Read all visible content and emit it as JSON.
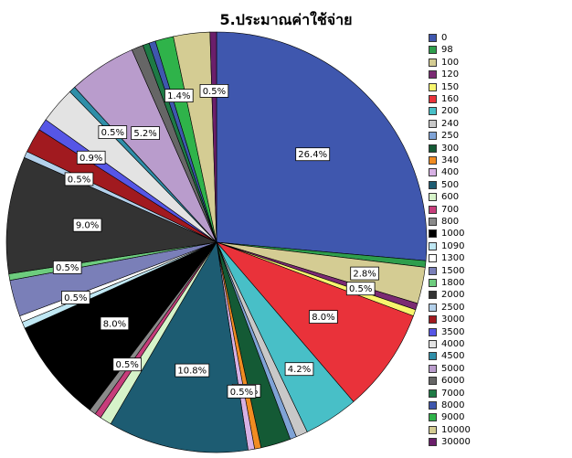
{
  "chart_data": {
    "type": "pie",
    "title": "5.ประมาณค่าใช้จ่าย",
    "legend_position": "right",
    "categories": [
      "0",
      "98",
      "100",
      "120",
      "150",
      "160",
      "200",
      "240",
      "250",
      "300",
      "340",
      "400",
      "500",
      "600",
      "700",
      "800",
      "1000",
      "1090",
      "1300",
      "1500",
      "1800",
      "2000",
      "2500",
      "3000",
      "3500",
      "4000",
      "4500",
      "5000",
      "6000",
      "7000",
      "8000",
      "9000",
      "10000",
      "30000"
    ],
    "values": [
      26.4,
      0.5,
      2.8,
      0.5,
      0.5,
      8.0,
      4.2,
      0.9,
      0.5,
      2.3,
      0.5,
      0.5,
      10.8,
      0.9,
      0.5,
      0.5,
      8.0,
      0.5,
      0.5,
      2.8,
      0.5,
      9.0,
      0.5,
      1.9,
      0.9,
      2.8,
      0.5,
      5.2,
      0.9,
      0.5,
      0.5,
      1.4,
      2.8,
      0.5
    ],
    "colors": [
      "#3f57ae",
      "#2e9e4c",
      "#d4cc93",
      "#7b2a73",
      "#f7f56e",
      "#e9323a",
      "#48bfc7",
      "#c8c8c8",
      "#7fa3d6",
      "#145a35",
      "#f08c22",
      "#d7b1e4",
      "#1d5c72",
      "#d6f3c9",
      "#c73d7b",
      "#8a8a8a",
      "#000000",
      "#bfe7f3",
      "#ffffff",
      "#7a7fb8",
      "#6dcc7e",
      "#333333",
      "#b3d0ea",
      "#a11a1f",
      "#5656e6",
      "#e3e3e3",
      "#2f8ea8",
      "#b99ccc",
      "#666666",
      "#1e7a45",
      "#3f57ae",
      "#2fb34a",
      "#d4cc93",
      "#6b1f6b"
    ],
    "data_labels": [
      {
        "index": 0,
        "text": "26.4%"
      },
      {
        "index": 2,
        "text": "2.8%"
      },
      {
        "index": 3,
        "text": "0.5%"
      },
      {
        "index": 5,
        "text": "8.0%"
      },
      {
        "index": 6,
        "text": "4.2%"
      },
      {
        "index": 10,
        "text": "0.5%"
      },
      {
        "index": 11,
        "text": "0.5%"
      },
      {
        "index": 12,
        "text": "10.8%"
      },
      {
        "index": 15,
        "text": "0.5%"
      },
      {
        "index": 16,
        "text": "8.0%"
      },
      {
        "index": 18,
        "text": "0.5%"
      },
      {
        "index": 20,
        "text": "0.5%"
      },
      {
        "index": 21,
        "text": "9.0%"
      },
      {
        "index": 22,
        "text": "0.5%"
      },
      {
        "index": 24,
        "text": "0.9%"
      },
      {
        "index": 26,
        "text": "0.5%"
      },
      {
        "index": 27,
        "text": "5.2%"
      },
      {
        "index": 31,
        "text": "1.4%"
      },
      {
        "index": 33,
        "text": "0.5%"
      }
    ]
  }
}
